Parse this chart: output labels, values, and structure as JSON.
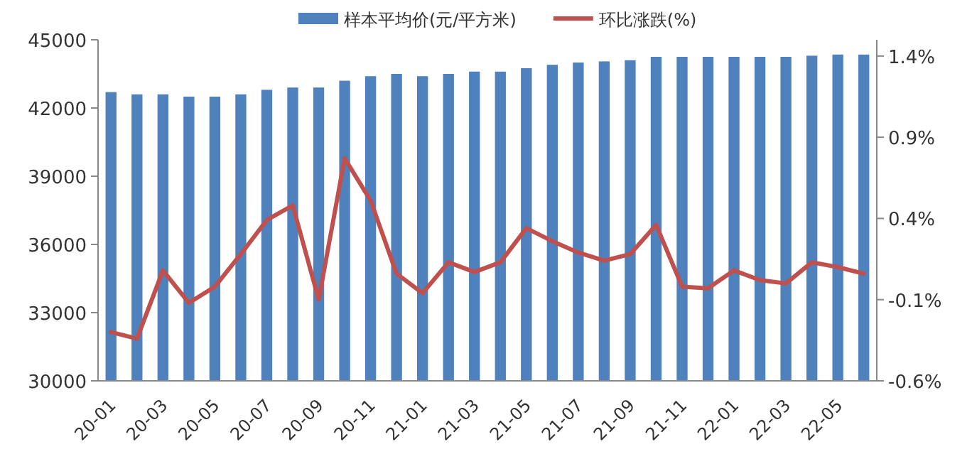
{
  "chart_data": {
    "type": "bar",
    "categories": [
      "20-01",
      null,
      "20-03",
      null,
      "20-05",
      null,
      "20-07",
      null,
      "20-09",
      null,
      "20-11",
      null,
      "21-01",
      null,
      "21-03",
      null,
      "21-05",
      null,
      "21-07",
      null,
      "21-09",
      null,
      "21-11",
      null,
      "22-01",
      null,
      "22-03",
      null,
      "22-05",
      null
    ],
    "series": [
      {
        "name": "样本平均价(元/平方米)",
        "color": "#4f81bd",
        "values": [
          42700,
          42600,
          42600,
          42500,
          42500,
          42600,
          42800,
          42900,
          42900,
          43200,
          43400,
          43500,
          43400,
          43500,
          43600,
          43600,
          43750,
          43900,
          44000,
          44050,
          44100,
          44250,
          44250,
          44250,
          44250,
          44250,
          44250,
          44300,
          44350,
          44350
        ]
      },
      {
        "name": "环比涨跌(%)",
        "type": "line",
        "axis": "y2",
        "color": "#c0504d",
        "values": [
          -0.3,
          -0.34,
          0.08,
          -0.12,
          -0.02,
          0.18,
          0.39,
          0.48,
          -0.1,
          0.77,
          0.51,
          0.06,
          -0.06,
          0.13,
          0.07,
          0.13,
          0.34,
          0.26,
          0.19,
          0.14,
          0.18,
          0.36,
          -0.02,
          -0.03,
          0.08,
          0.02,
          0.0,
          0.13,
          0.1,
          0.06
        ]
      }
    ],
    "ylim": [
      30000,
      45000
    ],
    "yticks": [
      30000,
      33000,
      36000,
      39000,
      42000,
      45000
    ],
    "y2lim": [
      -0.6,
      1.5
    ],
    "y2ticks": [
      {
        "value": -0.6,
        "label": "-0.6%"
      },
      {
        "value": -0.1,
        "label": "-0.1%"
      },
      {
        "value": 0.4,
        "label": "0.4%"
      },
      {
        "value": 0.9,
        "label": "0.9%"
      },
      {
        "value": 1.4,
        "label": "1.4%"
      }
    ],
    "legend": "top",
    "grid": false,
    "marker": "none",
    "line_style": "solid"
  }
}
